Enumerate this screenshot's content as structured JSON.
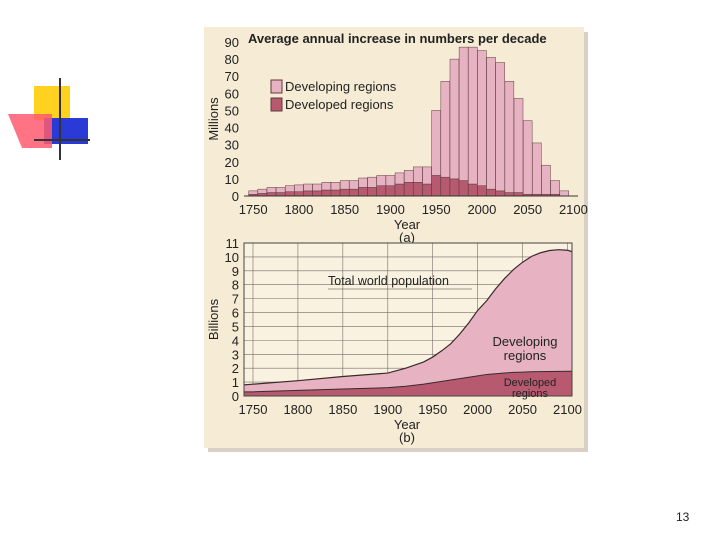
{
  "slide": {
    "number": "13"
  },
  "colors": {
    "panel_bg": "#f6ecd5",
    "developing": "#e7b3c2",
    "developed": "#b75a70",
    "outline": "#5a3b3b"
  },
  "chart_data": [
    {
      "type": "bar",
      "stacked": true,
      "title": "Average annual increase in numbers per decade",
      "ylabel": "Millions",
      "xlabel": "Year",
      "panel_label": "(a)",
      "ylim": [
        0,
        90
      ],
      "yticks": [
        "0",
        "10",
        "20",
        "30",
        "40",
        "50",
        "60",
        "70",
        "80",
        "90"
      ],
      "xlim": [
        1740,
        2105
      ],
      "xticks": [
        "1750",
        "1800",
        "1850",
        "1900",
        "1950",
        "2000",
        "2050",
        "2100"
      ],
      "x": [
        1750,
        1760,
        1770,
        1780,
        1790,
        1800,
        1810,
        1820,
        1830,
        1840,
        1850,
        1860,
        1870,
        1880,
        1890,
        1900,
        1910,
        1920,
        1930,
        1940,
        1950,
        1960,
        1970,
        1980,
        1990,
        2000,
        2010,
        2020,
        2030,
        2040,
        2050,
        2060,
        2070,
        2080,
        2090
      ],
      "series": [
        {
          "name": "Developing regions",
          "values": [
            2,
            2.5,
            3,
            3,
            3.5,
            4,
            4,
            4,
            4.5,
            4.5,
            5,
            5,
            5.5,
            6,
            6,
            6,
            6.5,
            7,
            9,
            10,
            38,
            56,
            70,
            78,
            80,
            79,
            77,
            75,
            65,
            55,
            43,
            30,
            17,
            8,
            3
          ]
        },
        {
          "name": "Developed regions",
          "values": [
            1,
            1.5,
            2,
            2,
            2.5,
            2.5,
            3,
            3,
            3.5,
            3.5,
            4,
            4,
            5,
            5,
            6,
            6,
            7,
            8,
            8,
            7,
            12,
            11,
            10,
            9,
            7,
            6,
            4,
            3,
            2,
            2,
            1,
            1,
            1,
            1,
            0
          ]
        }
      ],
      "legend": "top-left"
    },
    {
      "type": "area",
      "stacked": true,
      "ylabel": "Billions",
      "xlabel": "Year",
      "panel_label": "(b)",
      "ylim": [
        0,
        11
      ],
      "yticks": [
        "0",
        "1",
        "2",
        "3",
        "4",
        "5",
        "6",
        "7",
        "8",
        "9",
        "10",
        "11"
      ],
      "xlim": [
        1740,
        2105
      ],
      "xticks": [
        "1750",
        "1800",
        "1850",
        "1900",
        "1950",
        "2000",
        "2050",
        "2100"
      ],
      "x": [
        1740,
        1750,
        1800,
        1850,
        1900,
        1920,
        1940,
        1950,
        1960,
        1970,
        1980,
        1990,
        2000,
        2010,
        2020,
        2030,
        2040,
        2050,
        2060,
        2070,
        2080,
        2090,
        2100,
        2105
      ],
      "series": [
        {
          "name": "Developed regions",
          "values": [
            0.3,
            0.3,
            0.4,
            0.5,
            0.6,
            0.7,
            0.85,
            0.95,
            1.05,
            1.15,
            1.25,
            1.35,
            1.45,
            1.55,
            1.6,
            1.65,
            1.7,
            1.72,
            1.74,
            1.75,
            1.76,
            1.77,
            1.78,
            1.78
          ]
        },
        {
          "name": "Developing regions",
          "values": [
            0.5,
            0.55,
            0.7,
            0.9,
            1.05,
            1.3,
            1.6,
            1.85,
            2.2,
            2.6,
            3.2,
            3.9,
            4.7,
            5.3,
            6.1,
            6.8,
            7.4,
            7.9,
            8.3,
            8.55,
            8.7,
            8.75,
            8.7,
            8.6
          ]
        }
      ],
      "annotations": [
        {
          "text": "Total world population"
        },
        {
          "text": "Developing"
        },
        {
          "text": "regions"
        },
        {
          "text": "Developed"
        },
        {
          "text": "regions"
        }
      ]
    }
  ]
}
